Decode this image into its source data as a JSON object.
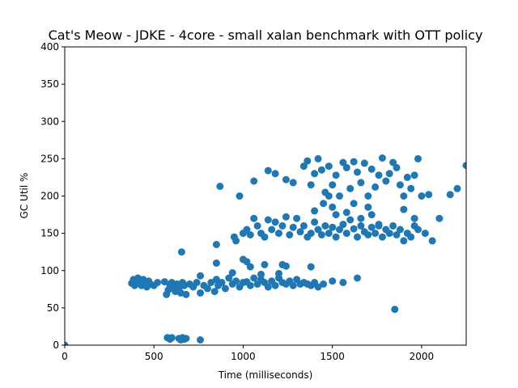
{
  "chart_data": {
    "type": "scatter",
    "title": "Cat's Meow - JDKE - 4core -  small xalan benchmark with OTT policy",
    "xlabel": "Time (milliseconds)",
    "ylabel": "GC Util %",
    "xlim": [
      0,
      2250
    ],
    "ylim": [
      0,
      400
    ],
    "xticks": [
      0,
      500,
      1000,
      1500,
      2000
    ],
    "yticks": [
      0,
      50,
      100,
      150,
      200,
      250,
      300,
      350,
      400
    ],
    "grid": false,
    "marker_color": "#1f77b4",
    "series": [
      {
        "points": [
          [
            0,
            0
          ],
          [
            375,
            83
          ],
          [
            385,
            88
          ],
          [
            392,
            80
          ],
          [
            400,
            85
          ],
          [
            410,
            90
          ],
          [
            420,
            86
          ],
          [
            430,
            80
          ],
          [
            440,
            88
          ],
          [
            450,
            84
          ],
          [
            460,
            78
          ],
          [
            470,
            86
          ],
          [
            480,
            82
          ],
          [
            500,
            80
          ],
          [
            520,
            84
          ],
          [
            560,
            85
          ],
          [
            570,
            68
          ],
          [
            580,
            74
          ],
          [
            590,
            80
          ],
          [
            600,
            84
          ],
          [
            610,
            78
          ],
          [
            620,
            72
          ],
          [
            630,
            82
          ],
          [
            640,
            76
          ],
          [
            650,
            70
          ],
          [
            660,
            84
          ],
          [
            670,
            80
          ],
          [
            680,
            68
          ],
          [
            700,
            82
          ],
          [
            720,
            78
          ],
          [
            740,
            84
          ],
          [
            760,
            70
          ],
          [
            780,
            80
          ],
          [
            800,
            76
          ],
          [
            820,
            84
          ],
          [
            840,
            72
          ],
          [
            850,
            88
          ],
          [
            860,
            80
          ],
          [
            880,
            84
          ],
          [
            900,
            76
          ],
          [
            920,
            90
          ],
          [
            940,
            82
          ],
          [
            960,
            86
          ],
          [
            980,
            78
          ],
          [
            1000,
            84
          ],
          [
            575,
            10
          ],
          [
            590,
            8
          ],
          [
            600,
            10
          ],
          [
            640,
            9
          ],
          [
            650,
            7
          ],
          [
            660,
            10
          ],
          [
            670,
            8
          ],
          [
            680,
            9
          ],
          [
            760,
            7
          ],
          [
            655,
            125
          ],
          [
            760,
            93
          ],
          [
            850,
            110
          ],
          [
            870,
            213
          ],
          [
            850,
            135
          ],
          [
            940,
            97
          ],
          [
            960,
            140
          ],
          [
            980,
            200
          ],
          [
            1000,
            115
          ],
          [
            1020,
            112
          ],
          [
            1040,
            105
          ],
          [
            1060,
            220
          ],
          [
            1100,
            95
          ],
          [
            1020,
            85
          ],
          [
            1040,
            80
          ],
          [
            1060,
            90
          ],
          [
            1080,
            82
          ],
          [
            1100,
            88
          ],
          [
            1120,
            84
          ],
          [
            1140,
            78
          ],
          [
            1160,
            86
          ],
          [
            1180,
            80
          ],
          [
            1200,
            90
          ],
          [
            1220,
            84
          ],
          [
            1240,
            82
          ],
          [
            1260,
            86
          ],
          [
            1280,
            80
          ],
          [
            1300,
            88
          ],
          [
            1320,
            82
          ],
          [
            1340,
            84
          ],
          [
            1360,
            82
          ],
          [
            1380,
            80
          ],
          [
            1400,
            84
          ],
          [
            1420,
            78
          ],
          [
            1450,
            82
          ],
          [
            1500,
            86
          ],
          [
            1560,
            84
          ],
          [
            1640,
            90
          ],
          [
            1120,
            108
          ],
          [
            1200,
            96
          ],
          [
            1220,
            108
          ],
          [
            1240,
            106
          ],
          [
            1380,
            105
          ],
          [
            1850,
            48
          ],
          [
            950,
            145
          ],
          [
            1000,
            150
          ],
          [
            1020,
            155
          ],
          [
            1040,
            148
          ],
          [
            1060,
            170
          ],
          [
            1080,
            160
          ],
          [
            1100,
            150
          ],
          [
            1120,
            145
          ],
          [
            1140,
            168
          ],
          [
            1160,
            155
          ],
          [
            1180,
            165
          ],
          [
            1200,
            150
          ],
          [
            1220,
            160
          ],
          [
            1240,
            172
          ],
          [
            1260,
            148
          ],
          [
            1280,
            158
          ],
          [
            1300,
            170
          ],
          [
            1320,
            152
          ],
          [
            1340,
            160
          ],
          [
            1360,
            145
          ],
          [
            1380,
            150
          ],
          [
            1400,
            165
          ],
          [
            1420,
            155
          ],
          [
            1440,
            148
          ],
          [
            1460,
            160
          ],
          [
            1480,
            150
          ],
          [
            1500,
            158
          ],
          [
            1520,
            145
          ],
          [
            1540,
            155
          ],
          [
            1560,
            162
          ],
          [
            1580,
            150
          ],
          [
            1600,
            168
          ],
          [
            1620,
            156
          ],
          [
            1640,
            145
          ],
          [
            1660,
            160
          ],
          [
            1680,
            152
          ],
          [
            1700,
            148
          ],
          [
            1720,
            158
          ],
          [
            1740,
            150
          ],
          [
            1760,
            162
          ],
          [
            1780,
            145
          ],
          [
            1800,
            155
          ],
          [
            1820,
            150
          ],
          [
            1840,
            160
          ],
          [
            1860,
            148
          ],
          [
            1880,
            155
          ],
          [
            1900,
            140
          ],
          [
            1920,
            150
          ],
          [
            1940,
            145
          ],
          [
            1960,
            160
          ],
          [
            1980,
            155
          ],
          [
            1400,
            180
          ],
          [
            1450,
            190
          ],
          [
            1480,
            200
          ],
          [
            1500,
            185
          ],
          [
            1520,
            175
          ],
          [
            1580,
            178
          ],
          [
            1620,
            190
          ],
          [
            1660,
            170
          ],
          [
            1700,
            185
          ],
          [
            1720,
            175
          ],
          [
            1760,
            160
          ],
          [
            1900,
            182
          ],
          [
            1960,
            170
          ],
          [
            2020,
            150
          ],
          [
            2060,
            140
          ],
          [
            2100,
            170
          ],
          [
            1140,
            234
          ],
          [
            1180,
            230
          ],
          [
            1240,
            222
          ],
          [
            1280,
            218
          ],
          [
            1340,
            240
          ],
          [
            1360,
            247
          ],
          [
            1380,
            215
          ],
          [
            1400,
            230
          ],
          [
            1420,
            250
          ],
          [
            1440,
            235
          ],
          [
            1460,
            205
          ],
          [
            1480,
            240
          ],
          [
            1500,
            215
          ],
          [
            1520,
            228
          ],
          [
            1540,
            200
          ],
          [
            1560,
            245
          ],
          [
            1580,
            238
          ],
          [
            1600,
            210
          ],
          [
            1620,
            246
          ],
          [
            1640,
            232
          ],
          [
            1660,
            218
          ],
          [
            1680,
            244
          ],
          [
            1700,
            200
          ],
          [
            1720,
            236
          ],
          [
            1740,
            212
          ],
          [
            1760,
            228
          ],
          [
            1780,
            251
          ],
          [
            1800,
            220
          ],
          [
            1820,
            230
          ],
          [
            1840,
            245
          ],
          [
            1860,
            238
          ],
          [
            1880,
            215
          ],
          [
            1900,
            200
          ],
          [
            1920,
            225
          ],
          [
            1940,
            210
          ],
          [
            1960,
            228
          ],
          [
            1980,
            250
          ],
          [
            2000,
            200
          ],
          [
            2040,
            202
          ],
          [
            2160,
            202
          ],
          [
            2200,
            210
          ],
          [
            2250,
            241
          ]
        ]
      }
    ]
  }
}
